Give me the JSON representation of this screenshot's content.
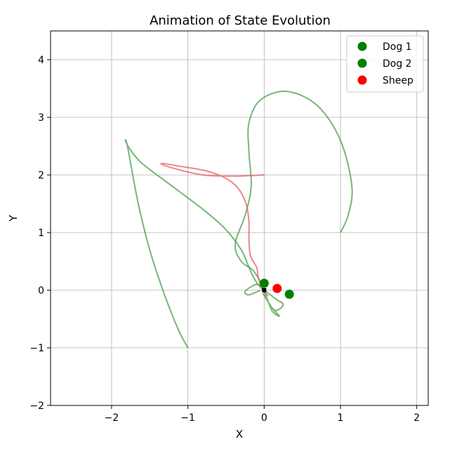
{
  "chart_data": {
    "type": "line",
    "title": "Animation of State Evolution",
    "xlabel": "X",
    "ylabel": "Y",
    "xlim": [
      -2.8,
      2.15
    ],
    "ylim": [
      -2.0,
      4.5
    ],
    "xticks": [
      -2,
      -1,
      0,
      1,
      2
    ],
    "xtick_labels": [
      "−2",
      "−1",
      "0",
      "1",
      "2"
    ],
    "yticks": [
      -2,
      -1,
      0,
      1,
      2,
      3,
      4
    ],
    "ytick_labels": [
      "−2",
      "−1",
      "0",
      "1",
      "2",
      "3",
      "4"
    ],
    "grid": true,
    "legend_position": "top-right",
    "legend": [
      {
        "label": "Dog 1",
        "color": "#008000"
      },
      {
        "label": "Dog 2",
        "color": "#008000"
      },
      {
        "label": "Sheep",
        "color": "#ff0000"
      }
    ],
    "trails": [
      {
        "color": "#4a9e4a",
        "points": [
          [
            -1.0,
            -1.0
          ],
          [
            -1.12,
            -0.7
          ],
          [
            -1.3,
            -0.1
          ],
          [
            -1.5,
            0.7
          ],
          [
            -1.65,
            1.5
          ],
          [
            -1.75,
            2.2
          ],
          [
            -1.8,
            2.55
          ],
          [
            -1.82,
            2.6
          ],
          [
            -1.76,
            2.45
          ],
          [
            -1.6,
            2.2
          ],
          [
            -1.2,
            1.8
          ],
          [
            -0.8,
            1.4
          ],
          [
            -0.5,
            1.05
          ],
          [
            -0.3,
            0.7
          ],
          [
            -0.2,
            0.4
          ],
          [
            -0.15,
            0.25
          ],
          [
            -0.08,
            0.1
          ],
          [
            -0.02,
            0.02
          ],
          [
            0.0,
            0.0
          ]
        ]
      },
      {
        "color": "#4a9e4a",
        "points": [
          [
            1.0,
            1.0
          ],
          [
            1.1,
            1.3
          ],
          [
            1.15,
            1.8
          ],
          [
            1.0,
            2.6
          ],
          [
            0.7,
            3.2
          ],
          [
            0.3,
            3.45
          ],
          [
            -0.05,
            3.3
          ],
          [
            -0.2,
            2.9
          ],
          [
            -0.2,
            2.4
          ],
          [
            -0.17,
            1.8
          ],
          [
            -0.25,
            1.3
          ],
          [
            -0.38,
            0.8
          ],
          [
            -0.3,
            0.5
          ],
          [
            -0.15,
            0.35
          ],
          [
            -0.05,
            0.15
          ],
          [
            0.0,
            0.0
          ]
        ]
      },
      {
        "color": "#4a9e4a",
        "points": [
          [
            -0.05,
            0.0
          ],
          [
            -0.2,
            -0.08
          ],
          [
            -0.25,
            -0.02
          ],
          [
            -0.1,
            0.1
          ],
          [
            0.0,
            0.0
          ],
          [
            0.15,
            -0.15
          ],
          [
            0.25,
            -0.25
          ],
          [
            0.15,
            -0.35
          ],
          [
            0.05,
            -0.2
          ],
          [
            0.0,
            0.0
          ],
          [
            0.1,
            -0.35
          ],
          [
            0.2,
            -0.45
          ],
          [
            0.1,
            -0.3
          ],
          [
            -0.02,
            -0.05
          ]
        ]
      },
      {
        "color": "#e06060",
        "points": [
          [
            0.0,
            2.0
          ],
          [
            -0.4,
            1.98
          ],
          [
            -0.8,
            2.0
          ],
          [
            -1.2,
            2.12
          ],
          [
            -1.35,
            2.2
          ],
          [
            -1.1,
            2.15
          ],
          [
            -0.7,
            2.05
          ],
          [
            -0.4,
            1.85
          ],
          [
            -0.25,
            1.55
          ],
          [
            -0.2,
            1.2
          ],
          [
            -0.2,
            0.9
          ],
          [
            -0.18,
            0.6
          ],
          [
            -0.1,
            0.4
          ],
          [
            -0.08,
            0.25
          ],
          [
            -0.05,
            0.1
          ],
          [
            -0.02,
            0.0
          ],
          [
            0.05,
            -0.1
          ]
        ]
      }
    ],
    "markers": [
      {
        "label": "Dog 1",
        "x": 0.0,
        "y": 0.12,
        "color": "#008000"
      },
      {
        "label": "Dog 2",
        "x": 0.33,
        "y": -0.07,
        "color": "#008000"
      },
      {
        "label": "Sheep",
        "x": 0.17,
        "y": 0.03,
        "color": "#ff0000"
      }
    ],
    "center_marker": {
      "x": 0.0,
      "y": 0.0,
      "color": "#000000"
    }
  }
}
